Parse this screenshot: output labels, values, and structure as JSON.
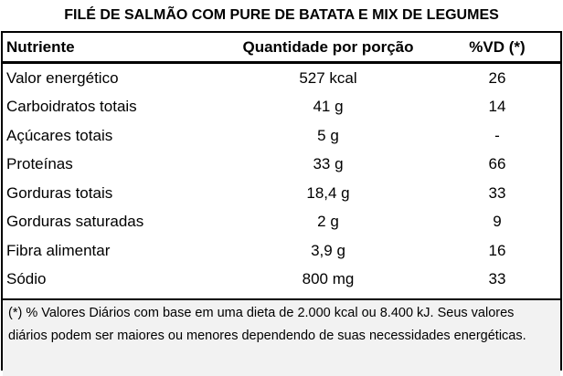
{
  "title": "FILÉ DE SALMÃO COM PURE DE BATATA E MIX DE LEGUMES",
  "table": {
    "header": [
      "Nutriente",
      "Quantidade por porção",
      "%VD (*)"
    ],
    "rows": [
      [
        "Valor energético",
        "527 kcal",
        "26"
      ],
      [
        "Carboidratos totais",
        "41 g",
        "14"
      ],
      [
        "Açúcares totais",
        "5 g",
        "-"
      ],
      [
        "Proteínas",
        "33 g",
        "66"
      ],
      [
        "Gorduras totais",
        "18,4 g",
        "33"
      ],
      [
        "Gorduras saturadas",
        "2 g",
        "9"
      ],
      [
        "Fibra alimentar",
        "3,9 g",
        "16"
      ],
      [
        "Sódio",
        "800 mg",
        "33"
      ]
    ]
  },
  "footnote": "(*) % Valores Diários com base em uma dieta de 2.000 kcal ou 8.400 kJ. Seus valores diários podem ser maiores ou menores dependendo de suas necessidades energéticas."
}
